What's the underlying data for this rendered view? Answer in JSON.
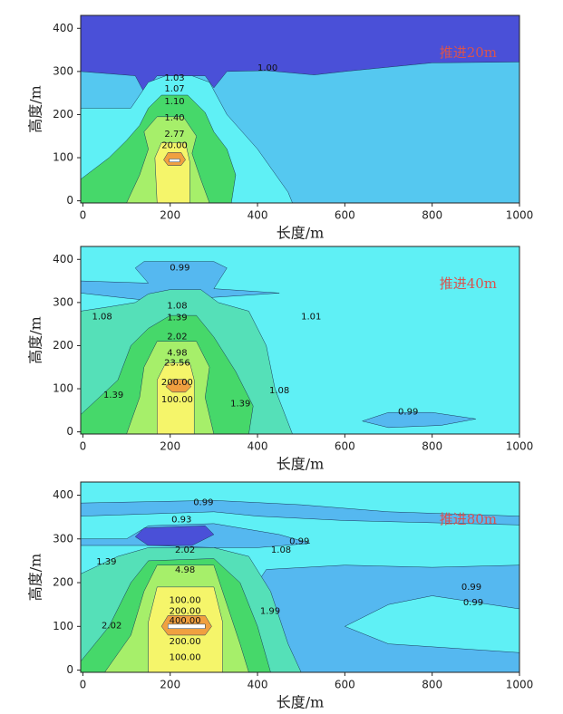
{
  "chart_data": [
    {
      "type": "contour",
      "annotation": "推进20m",
      "x_label": "长度/m",
      "y_label": "高度/m",
      "xlim": [
        -5,
        1000
      ],
      "ylim": [
        -5,
        430
      ],
      "xticks": [
        0,
        200,
        400,
        600,
        800,
        1000
      ],
      "yticks": [
        0,
        100,
        200,
        300,
        400
      ],
      "contour_labels": [
        {
          "x": 210,
          "y": 285,
          "value": 1.03
        },
        {
          "x": 210,
          "y": 260,
          "value": 1.07
        },
        {
          "x": 210,
          "y": 230,
          "value": 1.1,
          "label": "1.10"
        },
        {
          "x": 210,
          "y": 193,
          "value": 1.4,
          "label": "1.40"
        },
        {
          "x": 210,
          "y": 155,
          "value": 2.77
        },
        {
          "x": 210,
          "y": 128,
          "value": 20,
          "label": "20.00"
        },
        {
          "x": 423,
          "y": 308,
          "value": 1,
          "label": "1.00"
        }
      ]
    },
    {
      "type": "contour",
      "annotation": "推进40m",
      "x_label": "长度/m",
      "y_label": "高度/m",
      "xlim": [
        -5,
        1000
      ],
      "ylim": [
        -5,
        430
      ],
      "xticks": [
        0,
        200,
        400,
        600,
        800,
        1000
      ],
      "yticks": [
        0,
        100,
        200,
        300,
        400
      ],
      "contour_labels": [
        {
          "x": 222,
          "y": 381,
          "value": 0.99
        },
        {
          "x": 216,
          "y": 292,
          "value": 1.08
        },
        {
          "x": 216,
          "y": 265,
          "value": 1.39
        },
        {
          "x": 216,
          "y": 221,
          "value": 2.02
        },
        {
          "x": 216,
          "y": 183,
          "value": 4.98
        },
        {
          "x": 216,
          "y": 160,
          "value": 23.56
        },
        {
          "x": 216,
          "y": 115,
          "value": 200,
          "label": "200.00"
        },
        {
          "x": 216,
          "y": 75,
          "value": 100,
          "label": "100.00"
        },
        {
          "x": 44,
          "y": 267,
          "value": 1.08
        },
        {
          "x": 523,
          "y": 267,
          "value": 1.01
        },
        {
          "x": 70,
          "y": 85,
          "value": 1.39
        },
        {
          "x": 361,
          "y": 65,
          "value": 1.39
        },
        {
          "x": 450,
          "y": 96,
          "value": 1.08
        },
        {
          "x": 745,
          "y": 46,
          "value": 0.99
        }
      ]
    },
    {
      "type": "contour",
      "annotation": "推进80m",
      "x_label": "长度/m",
      "y_label": "高度/m",
      "xlim": [
        -5,
        1000
      ],
      "ylim": [
        -5,
        430
      ],
      "xticks": [
        0,
        200,
        400,
        600,
        800,
        1000
      ],
      "yticks": [
        0,
        100,
        200,
        300,
        400
      ],
      "contour_labels": [
        {
          "x": 276,
          "y": 383,
          "value": 0.99
        },
        {
          "x": 226,
          "y": 344,
          "value": 0.93
        },
        {
          "x": 234,
          "y": 275,
          "value": 2.02
        },
        {
          "x": 454,
          "y": 275,
          "value": 1.08
        },
        {
          "x": 496,
          "y": 294,
          "value": 0.99
        },
        {
          "x": 234,
          "y": 229,
          "value": 4.98
        },
        {
          "x": 54,
          "y": 248,
          "value": 1.39
        },
        {
          "x": 890,
          "y": 190,
          "value": 0.99
        },
        {
          "x": 894,
          "y": 154,
          "value": 0.99
        },
        {
          "x": 234,
          "y": 160,
          "value": 100,
          "label": "100.00"
        },
        {
          "x": 234,
          "y": 135,
          "value": 200,
          "label": "200.00"
        },
        {
          "x": 234,
          "y": 113,
          "value": 400,
          "label": "400.00"
        },
        {
          "x": 234,
          "y": 65,
          "value": 200,
          "label": "200.00"
        },
        {
          "x": 234,
          "y": 29,
          "value": 100,
          "label": "100.00"
        },
        {
          "x": 66,
          "y": 102,
          "value": 2.02
        },
        {
          "x": 429,
          "y": 135,
          "value": 1.99
        }
      ]
    }
  ]
}
